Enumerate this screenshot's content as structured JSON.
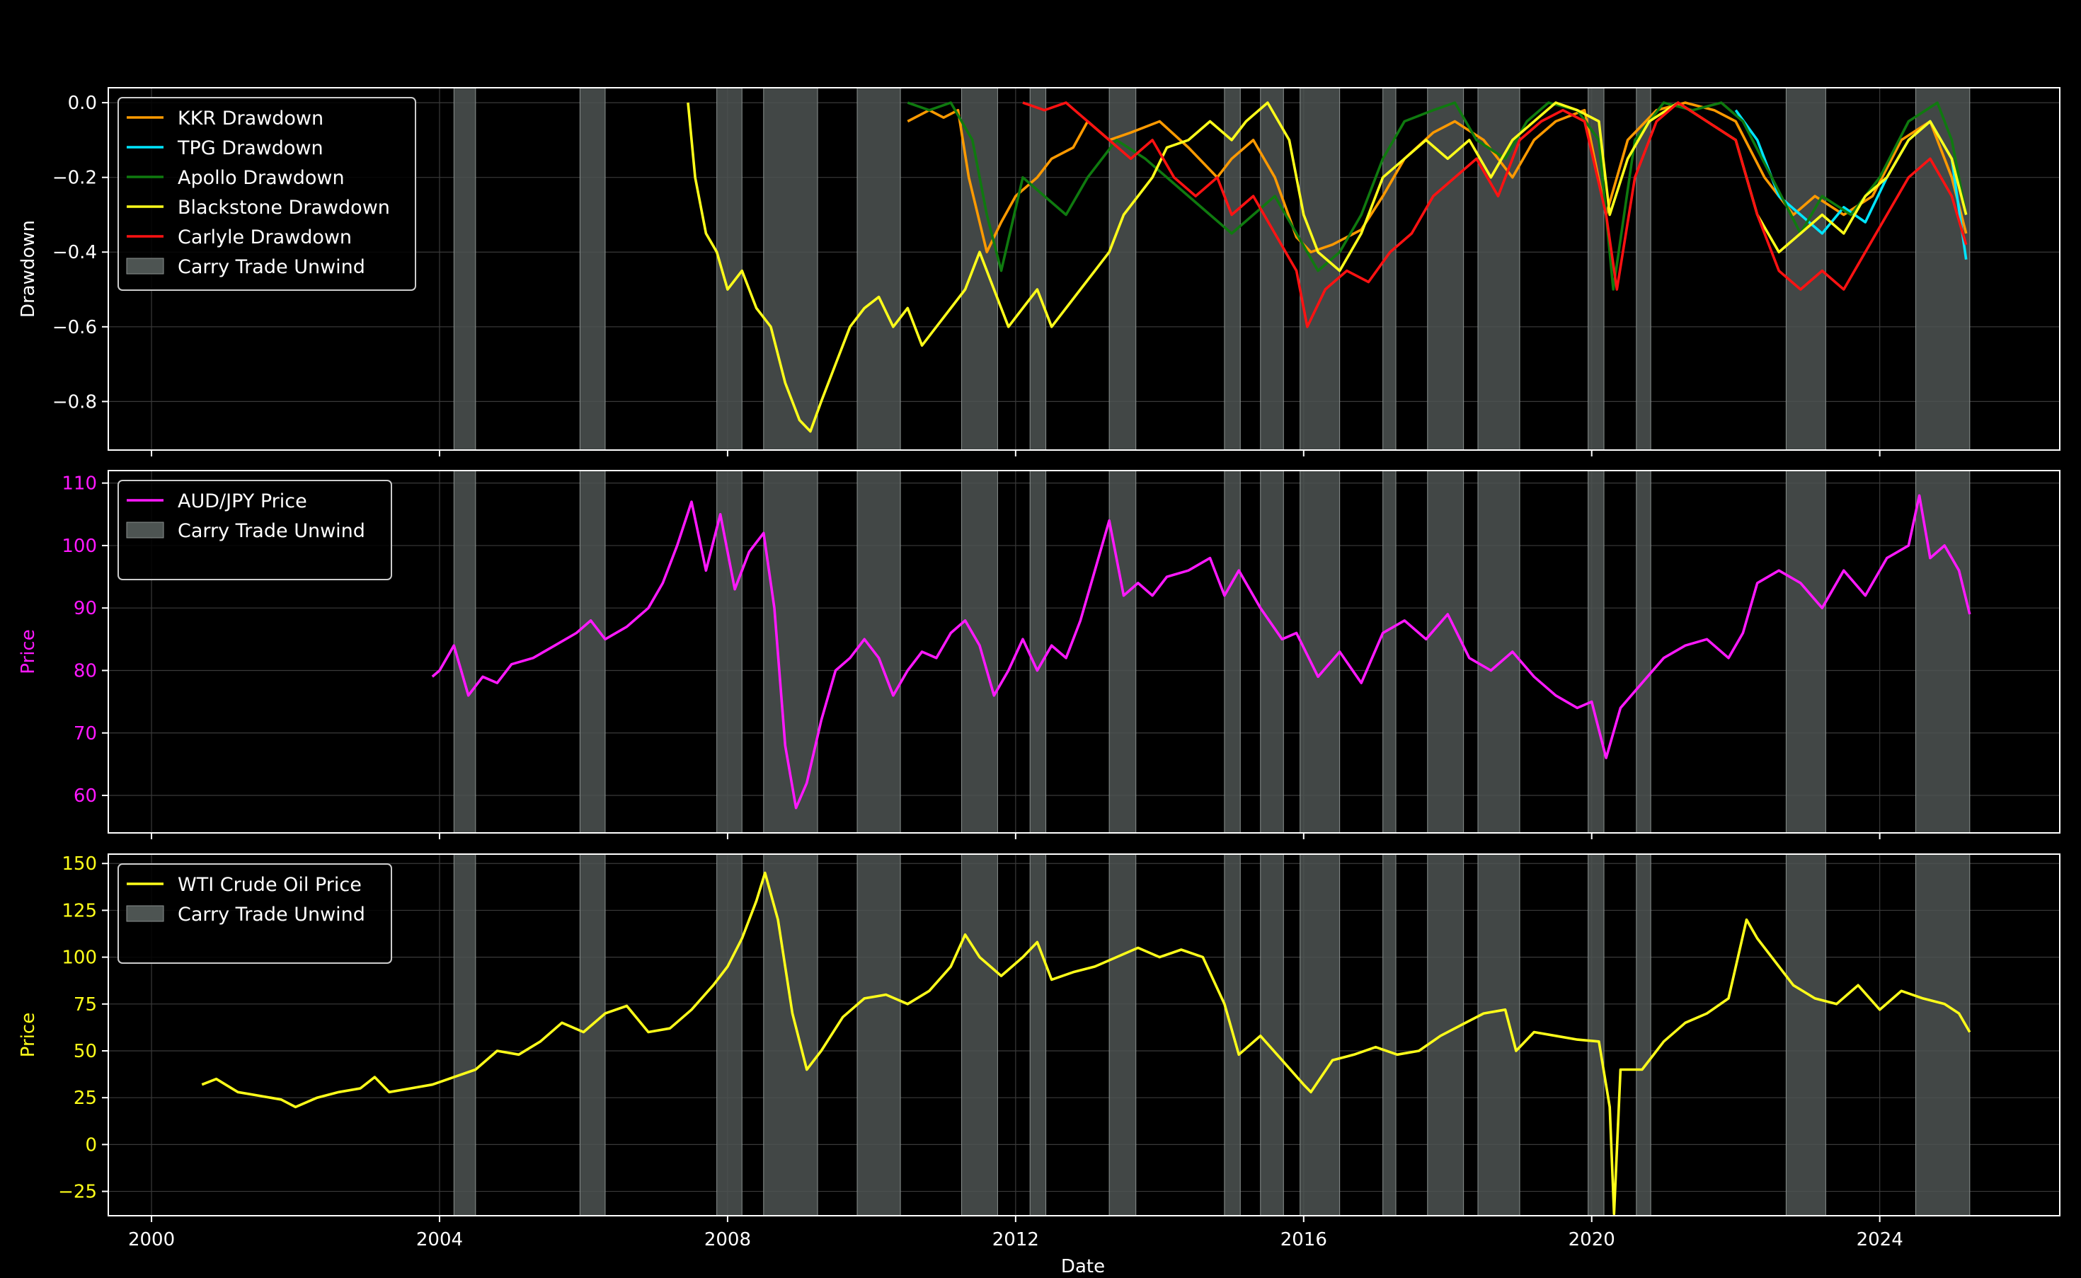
{
  "chart_data": [
    {
      "type": "line",
      "ylabel": "Drawdown",
      "ylim": [
        -0.93,
        0.04
      ],
      "yticks": [
        0.0,
        -0.2,
        -0.4,
        -0.6,
        -0.8
      ],
      "ytick_labels": [
        "0.0",
        "−0.2",
        "−0.4",
        "−0.6",
        "−0.8"
      ],
      "ylabel_color": "#ffffff",
      "tick_color": "#ffffff",
      "legend_position": "top-left",
      "series": [
        {
          "name": "KKR Drawdown",
          "color": "#ff9a00",
          "x": [
            2010.5,
            2010.8,
            2011.0,
            2011.2,
            2011.35,
            2011.6,
            2011.8,
            2012.0,
            2012.3,
            2012.5,
            2012.8,
            2013.0,
            2013.3,
            2013.6,
            2014.0,
            2014.4,
            2014.8,
            2015.0,
            2015.3,
            2015.6,
            2015.9,
            2016.1,
            2016.4,
            2016.8,
            2017.1,
            2017.4,
            2017.8,
            2018.1,
            2018.5,
            2018.9,
            2019.2,
            2019.5,
            2019.9,
            2020.2,
            2020.5,
            2020.9,
            2021.3,
            2021.7,
            2022.0,
            2022.4,
            2022.8,
            2023.1,
            2023.5,
            2023.9,
            2024.3,
            2024.7,
            2025.0,
            2025.2
          ],
          "y": [
            -0.05,
            -0.02,
            -0.04,
            -0.02,
            -0.2,
            -0.4,
            -0.32,
            -0.25,
            -0.2,
            -0.15,
            -0.12,
            -0.05,
            -0.1,
            -0.08,
            -0.05,
            -0.12,
            -0.2,
            -0.15,
            -0.1,
            -0.2,
            -0.36,
            -0.4,
            -0.38,
            -0.34,
            -0.25,
            -0.15,
            -0.08,
            -0.05,
            -0.1,
            -0.2,
            -0.1,
            -0.05,
            -0.02,
            -0.3,
            -0.1,
            -0.02,
            0.0,
            -0.02,
            -0.05,
            -0.2,
            -0.3,
            -0.25,
            -0.3,
            -0.25,
            -0.1,
            -0.05,
            -0.2,
            -0.35
          ]
        },
        {
          "name": "TPG Drawdown",
          "color": "#00e5ff",
          "x": [
            2022.0,
            2022.3,
            2022.6,
            2022.9,
            2023.2,
            2023.5,
            2023.8,
            2024.1,
            2024.4,
            2024.7,
            2025.0,
            2025.2
          ],
          "y": [
            -0.02,
            -0.1,
            -0.25,
            -0.3,
            -0.35,
            -0.28,
            -0.32,
            -0.2,
            -0.1,
            -0.05,
            -0.15,
            -0.42
          ]
        },
        {
          "name": "Apollo Drawdown",
          "color": "#0f7a0f",
          "x": [
            2010.5,
            2010.8,
            2011.1,
            2011.4,
            2011.6,
            2011.8,
            2012.1,
            2012.4,
            2012.7,
            2013.0,
            2013.4,
            2013.8,
            2014.1,
            2014.4,
            2014.7,
            2015.0,
            2015.3,
            2015.6,
            2015.9,
            2016.2,
            2016.5,
            2016.8,
            2017.1,
            2017.4,
            2017.8,
            2018.1,
            2018.4,
            2018.8,
            2019.1,
            2019.4,
            2019.8,
            2020.1,
            2020.3,
            2020.6,
            2021.0,
            2021.4,
            2021.8,
            2022.1,
            2022.5,
            2022.9,
            2023.2,
            2023.6,
            2024.0,
            2024.4,
            2024.8,
            2025.0,
            2025.2
          ],
          "y": [
            0.0,
            -0.02,
            0.0,
            -0.1,
            -0.3,
            -0.45,
            -0.2,
            -0.25,
            -0.3,
            -0.2,
            -0.1,
            -0.15,
            -0.2,
            -0.25,
            -0.3,
            -0.35,
            -0.3,
            -0.25,
            -0.35,
            -0.45,
            -0.4,
            -0.3,
            -0.15,
            -0.05,
            -0.02,
            0.0,
            -0.1,
            -0.15,
            -0.05,
            0.0,
            -0.02,
            -0.1,
            -0.5,
            -0.1,
            0.0,
            -0.02,
            0.0,
            -0.05,
            -0.2,
            -0.35,
            -0.25,
            -0.3,
            -0.2,
            -0.05,
            0.0,
            -0.1,
            -0.3
          ]
        },
        {
          "name": "Blackstone Drawdown",
          "color": "#ffff1a",
          "x": [
            2007.45,
            2007.55,
            2007.7,
            2007.85,
            2008.0,
            2008.2,
            2008.4,
            2008.6,
            2008.8,
            2009.0,
            2009.15,
            2009.3,
            2009.5,
            2009.7,
            2009.9,
            2010.1,
            2010.3,
            2010.5,
            2010.7,
            2010.9,
            2011.1,
            2011.3,
            2011.5,
            2011.7,
            2011.9,
            2012.1,
            2012.3,
            2012.5,
            2012.7,
            2012.9,
            2013.1,
            2013.3,
            2013.5,
            2013.7,
            2013.9,
            2014.1,
            2014.4,
            2014.7,
            2015.0,
            2015.2,
            2015.5,
            2015.8,
            2016.0,
            2016.2,
            2016.5,
            2016.8,
            2017.1,
            2017.4,
            2017.7,
            2018.0,
            2018.3,
            2018.6,
            2018.9,
            2019.2,
            2019.5,
            2019.8,
            2020.1,
            2020.25,
            2020.5,
            2020.8,
            2021.2,
            2021.6,
            2022.0,
            2022.3,
            2022.6,
            2022.9,
            2023.2,
            2023.5,
            2023.8,
            2024.1,
            2024.4,
            2024.7,
            2025.0,
            2025.2
          ],
          "y": [
            0.0,
            -0.2,
            -0.35,
            -0.4,
            -0.5,
            -0.45,
            -0.55,
            -0.6,
            -0.75,
            -0.85,
            -0.88,
            -0.8,
            -0.7,
            -0.6,
            -0.55,
            -0.52,
            -0.6,
            -0.55,
            -0.65,
            -0.6,
            -0.55,
            -0.5,
            -0.4,
            -0.5,
            -0.6,
            -0.55,
            -0.5,
            -0.6,
            -0.55,
            -0.5,
            -0.45,
            -0.4,
            -0.3,
            -0.25,
            -0.2,
            -0.12,
            -0.1,
            -0.05,
            -0.1,
            -0.05,
            0.0,
            -0.1,
            -0.3,
            -0.4,
            -0.45,
            -0.35,
            -0.2,
            -0.15,
            -0.1,
            -0.15,
            -0.1,
            -0.2,
            -0.1,
            -0.05,
            0.0,
            -0.02,
            -0.05,
            -0.3,
            -0.15,
            -0.05,
            0.0,
            -0.05,
            -0.1,
            -0.3,
            -0.4,
            -0.35,
            -0.3,
            -0.35,
            -0.25,
            -0.2,
            -0.1,
            -0.05,
            -0.15,
            -0.3
          ]
        },
        {
          "name": "Carlyle Drawdown",
          "color": "#ff1212",
          "x": [
            2012.1,
            2012.4,
            2012.7,
            2013.0,
            2013.3,
            2013.6,
            2013.9,
            2014.2,
            2014.5,
            2014.8,
            2015.0,
            2015.3,
            2015.6,
            2015.9,
            2016.05,
            2016.3,
            2016.6,
            2016.9,
            2017.2,
            2017.5,
            2017.8,
            2018.1,
            2018.4,
            2018.7,
            2019.0,
            2019.3,
            2019.6,
            2019.9,
            2020.2,
            2020.35,
            2020.6,
            2020.9,
            2021.2,
            2021.6,
            2022.0,
            2022.3,
            2022.6,
            2022.9,
            2023.2,
            2023.5,
            2023.8,
            2024.1,
            2024.4,
            2024.7,
            2025.0,
            2025.2
          ],
          "y": [
            0.0,
            -0.02,
            0.0,
            -0.05,
            -0.1,
            -0.15,
            -0.1,
            -0.2,
            -0.25,
            -0.2,
            -0.3,
            -0.25,
            -0.35,
            -0.45,
            -0.6,
            -0.5,
            -0.45,
            -0.48,
            -0.4,
            -0.35,
            -0.25,
            -0.2,
            -0.15,
            -0.25,
            -0.1,
            -0.05,
            -0.02,
            -0.05,
            -0.3,
            -0.5,
            -0.2,
            -0.05,
            0.0,
            -0.05,
            -0.1,
            -0.3,
            -0.45,
            -0.5,
            -0.45,
            -0.5,
            -0.4,
            -0.3,
            -0.2,
            -0.15,
            -0.25,
            -0.38
          ]
        }
      ]
    },
    {
      "type": "line",
      "ylabel": "Price",
      "ylim": [
        54,
        112
      ],
      "yticks": [
        60,
        70,
        80,
        90,
        100,
        110
      ],
      "ytick_labels": [
        "60",
        "70",
        "80",
        "90",
        "100",
        "110"
      ],
      "ylabel_color": "#ff19ff",
      "tick_color": "#ff19ff",
      "legend_position": "top-left",
      "series": [
        {
          "name": "AUD/JPY Price",
          "color": "#ff19ff",
          "x": [
            2003.9,
            2004.0,
            2004.2,
            2004.4,
            2004.6,
            2004.8,
            2005.0,
            2005.3,
            2005.6,
            2005.9,
            2006.1,
            2006.3,
            2006.6,
            2006.9,
            2007.1,
            2007.3,
            2007.5,
            2007.7,
            2007.9,
            2008.1,
            2008.3,
            2008.5,
            2008.65,
            2008.8,
            2008.95,
            2009.1,
            2009.3,
            2009.5,
            2009.7,
            2009.9,
            2010.1,
            2010.3,
            2010.5,
            2010.7,
            2010.9,
            2011.1,
            2011.3,
            2011.5,
            2011.7,
            2011.9,
            2012.1,
            2012.3,
            2012.5,
            2012.7,
            2012.9,
            2013.1,
            2013.3,
            2013.5,
            2013.7,
            2013.9,
            2014.1,
            2014.4,
            2014.7,
            2014.9,
            2015.1,
            2015.4,
            2015.7,
            2015.9,
            2016.2,
            2016.5,
            2016.8,
            2017.1,
            2017.4,
            2017.7,
            2018.0,
            2018.3,
            2018.6,
            2018.9,
            2019.2,
            2019.5,
            2019.8,
            2020.0,
            2020.2,
            2020.4,
            2020.7,
            2021.0,
            2021.3,
            2021.6,
            2021.9,
            2022.1,
            2022.3,
            2022.6,
            2022.9,
            2023.2,
            2023.5,
            2023.8,
            2024.1,
            2024.4,
            2024.55,
            2024.7,
            2024.9,
            2025.1,
            2025.25
          ],
          "y": [
            79,
            80,
            84,
            76,
            79,
            78,
            81,
            82,
            84,
            86,
            88,
            85,
            87,
            90,
            94,
            100,
            107,
            96,
            105,
            93,
            99,
            102,
            90,
            68,
            58,
            62,
            72,
            80,
            82,
            85,
            82,
            76,
            80,
            83,
            82,
            86,
            88,
            84,
            76,
            80,
            85,
            80,
            84,
            82,
            88,
            96,
            104,
            92,
            94,
            92,
            95,
            96,
            98,
            92,
            96,
            90,
            85,
            86,
            79,
            83,
            78,
            86,
            88,
            85,
            89,
            82,
            80,
            83,
            79,
            76,
            74,
            75,
            66,
            74,
            78,
            82,
            84,
            85,
            82,
            86,
            94,
            96,
            94,
            90,
            96,
            92,
            98,
            100,
            108,
            98,
            100,
            96,
            89
          ]
        }
      ]
    },
    {
      "type": "line",
      "xlabel": "Date",
      "ylabel": "Price",
      "ylim": [
        -38,
        155
      ],
      "yticks": [
        -25,
        0,
        25,
        50,
        75,
        100,
        125,
        150
      ],
      "ytick_labels": [
        "−25",
        "0",
        "25",
        "50",
        "75",
        "100",
        "125",
        "150"
      ],
      "ylabel_color": "#ffff1a",
      "tick_color": "#ffff1a",
      "xlim": [
        1999.4,
        2026.5
      ],
      "xticks": [
        2000,
        2004,
        2008,
        2012,
        2016,
        2020,
        2024
      ],
      "xtick_labels": [
        "2000",
        "2004",
        "2008",
        "2012",
        "2016",
        "2020",
        "2024"
      ],
      "legend_position": "top-left",
      "series": [
        {
          "name": "WTI Crude Oil Price",
          "color": "#ffff1a",
          "x": [
            2000.7,
            2000.9,
            2001.2,
            2001.5,
            2001.8,
            2002.0,
            2002.3,
            2002.6,
            2002.9,
            2003.1,
            2003.3,
            2003.6,
            2003.9,
            2004.2,
            2004.5,
            2004.8,
            2005.1,
            2005.4,
            2005.7,
            2006.0,
            2006.3,
            2006.6,
            2006.9,
            2007.2,
            2007.5,
            2007.8,
            2008.0,
            2008.2,
            2008.4,
            2008.52,
            2008.7,
            2008.9,
            2009.1,
            2009.3,
            2009.6,
            2009.9,
            2010.2,
            2010.5,
            2010.8,
            2011.1,
            2011.3,
            2011.5,
            2011.8,
            2012.1,
            2012.3,
            2012.5,
            2012.8,
            2013.1,
            2013.4,
            2013.7,
            2014.0,
            2014.3,
            2014.6,
            2014.9,
            2015.1,
            2015.4,
            2015.7,
            2016.0,
            2016.1,
            2016.4,
            2016.7,
            2017.0,
            2017.3,
            2017.6,
            2017.9,
            2018.2,
            2018.5,
            2018.8,
            2018.95,
            2019.2,
            2019.5,
            2019.8,
            2020.1,
            2020.25,
            2020.31,
            2020.4,
            2020.7,
            2021.0,
            2021.3,
            2021.6,
            2021.9,
            2022.15,
            2022.3,
            2022.5,
            2022.8,
            2023.1,
            2023.4,
            2023.7,
            2024.0,
            2024.3,
            2024.6,
            2024.9,
            2025.1,
            2025.25
          ],
          "y": [
            32,
            35,
            28,
            26,
            24,
            20,
            25,
            28,
            30,
            36,
            28,
            30,
            32,
            36,
            40,
            50,
            48,
            55,
            65,
            60,
            70,
            74,
            60,
            62,
            72,
            85,
            95,
            110,
            130,
            145,
            120,
            70,
            40,
            50,
            68,
            78,
            80,
            75,
            82,
            95,
            112,
            100,
            90,
            100,
            108,
            88,
            92,
            95,
            100,
            105,
            100,
            104,
            100,
            75,
            48,
            58,
            45,
            32,
            28,
            45,
            48,
            52,
            48,
            50,
            58,
            64,
            70,
            72,
            50,
            60,
            58,
            56,
            55,
            20,
            -37,
            40,
            40,
            55,
            65,
            70,
            78,
            120,
            110,
            100,
            85,
            78,
            75,
            85,
            72,
            82,
            78,
            75,
            70,
            60
          ]
        }
      ]
    }
  ],
  "legend_shade_label": "Carry Trade Unwind",
  "shade_color": "#4d5452",
  "unwind_periods": [
    [
      2004.2,
      2004.5
    ],
    [
      2005.95,
      2006.3
    ],
    [
      2007.85,
      2008.2
    ],
    [
      2008.5,
      2009.25
    ],
    [
      2009.8,
      2010.4
    ],
    [
      2011.25,
      2011.75
    ],
    [
      2012.2,
      2012.42
    ],
    [
      2013.3,
      2013.67
    ],
    [
      2014.9,
      2015.12
    ],
    [
      2015.4,
      2015.72
    ],
    [
      2015.95,
      2016.5
    ],
    [
      2017.1,
      2017.28
    ],
    [
      2017.72,
      2018.22
    ],
    [
      2018.42,
      2019.0
    ],
    [
      2019.95,
      2020.17
    ],
    [
      2020.62,
      2020.82
    ],
    [
      2022.7,
      2023.25
    ],
    [
      2024.5,
      2025.25
    ]
  ]
}
